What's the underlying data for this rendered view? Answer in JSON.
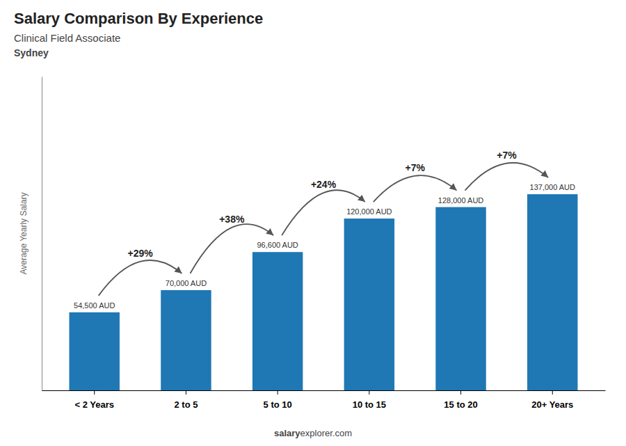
{
  "chart_data": {
    "type": "bar",
    "title": "Salary Comparison By Experience",
    "subtitle": [
      "Clinical Field Associate",
      "Sydney"
    ],
    "categories": [
      "< 2 Years",
      "2 to 5",
      "5 to 10",
      "10 to 15",
      "15 to 20",
      "20+ Years"
    ],
    "values": [
      54500,
      70000,
      96600,
      120000,
      128000,
      137000
    ],
    "value_labels": [
      "54,500 AUD",
      "70,000 AUD",
      "96,600 AUD",
      "120,000 AUD",
      "128,000 AUD",
      "137,000 AUD"
    ],
    "data_labels": true,
    "annotations": [
      "+29%",
      "+38%",
      "+24%",
      "+7%",
      "+7%"
    ],
    "ylabel": "Average Yearly Salary",
    "footer": [
      "salary",
      "explorer.com"
    ],
    "ylim": [
      0,
      219200
    ],
    "tick_labels": "x",
    "grid": false
  }
}
